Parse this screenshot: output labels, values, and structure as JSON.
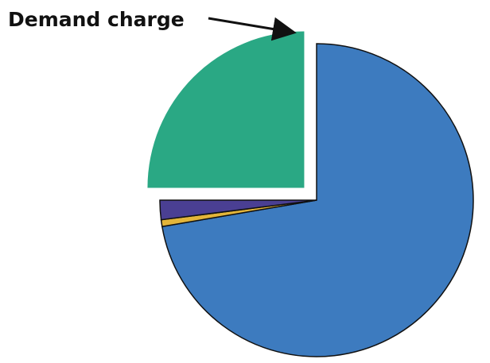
{
  "chart_data": {
    "type": "pie",
    "title": "",
    "slices": [
      {
        "value": 72.3,
        "color": "#3d7bbf",
        "exploded": false
      },
      {
        "value": 0.7,
        "color": "#e3b53a",
        "exploded": false
      },
      {
        "value": 2.0,
        "color": "#4a3f93",
        "exploded": false
      },
      {
        "value": 25.0,
        "color": "#2aa884",
        "exploded": true
      }
    ],
    "start_angle_deg": 0,
    "direction": "clockwise",
    "annotations": [
      {
        "text": "Demand charge",
        "target_slice": 3,
        "arrow": true
      }
    ]
  },
  "colors": {
    "background": "#ffffff",
    "outline": "#111111",
    "label": "#111111"
  }
}
